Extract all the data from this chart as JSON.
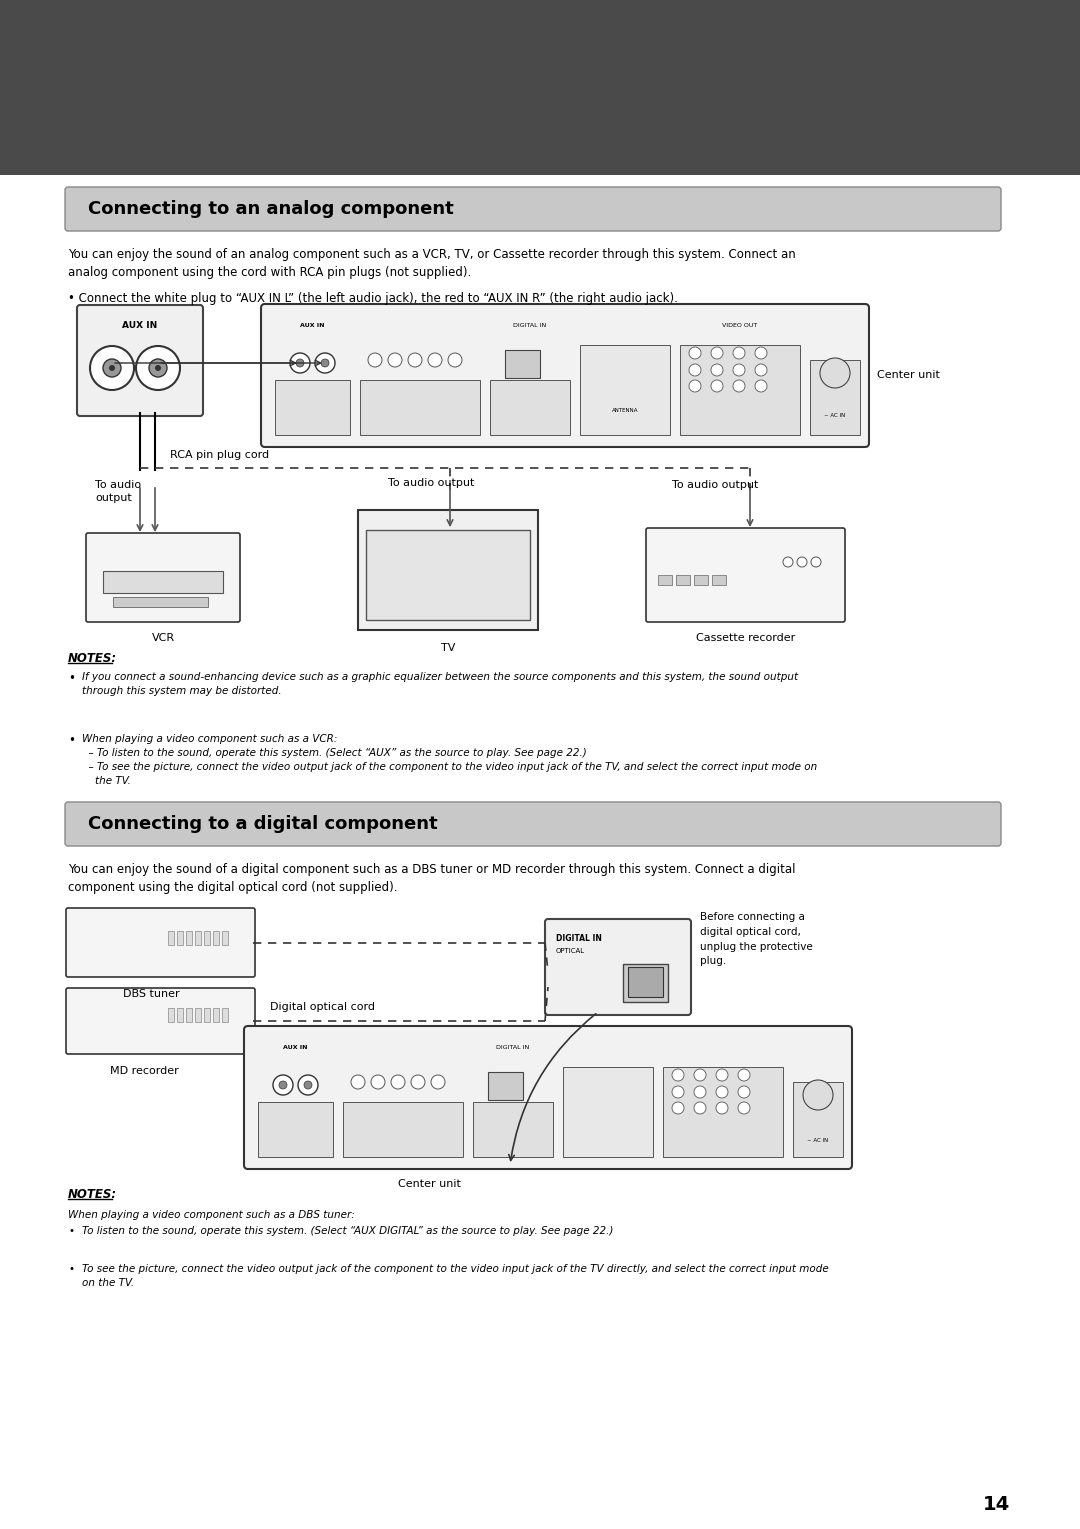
{
  "bg_color": "#ffffff",
  "header_bar_color": "#4a4a4a",
  "section1_title": "Connecting to an analog component",
  "section1_title_bg": "#d0d0d0",
  "section1_title_color": "#000000",
  "section1_body": "You can enjoy the sound of an analog component such as a VCR, TV, or Cassette recorder through this system. Connect an\nanalog component using the cord with RCA pin plugs (not supplied).",
  "section1_bullet": "• Connect the white plug to “AUX IN L” (the left audio jack), the red to “AUX IN R” (the right audio jack).",
  "section1_notes_title": "NOTES:",
  "section1_notes": [
    "If you connect a sound-enhancing device such as a graphic equalizer between the source components and this system, the sound output\nthrough this system may be distorted.",
    "When playing a video component such as a VCR:\n  – To listen to the sound, operate this system. (Select “AUX” as the source to play. See page 22.)\n  – To see the picture, connect the video output jack of the component to the video input jack of the TV, and select the correct input mode on\n    the TV."
  ],
  "section2_title": "Connecting to a digital component",
  "section2_title_bg": "#d0d0d0",
  "section2_title_color": "#000000",
  "section2_body": "You can enjoy the sound of a digital component such as a DBS tuner or MD recorder through this system. Connect a digital\ncomponent using the digital optical cord (not supplied).",
  "section2_notes_title": "NOTES:",
  "section2_notes_header": "When playing a video component such as a DBS tuner:",
  "section2_notes": [
    "To listen to the sound, operate this system. (Select “AUX DIGITAL” as the source to play. See page 22.)",
    "To see the picture, connect the video output jack of the component to the video input jack of the TV directly, and select the correct input mode\non the TV."
  ],
  "label_center_unit": "Center unit",
  "label_rca_cord": "RCA pin plug cord",
  "label_to_audio_output1": "To audio\noutput",
  "label_to_audio_output2": "To audio output",
  "label_to_audio_output3": "To audio output",
  "label_vcr": "VCR",
  "label_tv": "TV",
  "label_cassette": "Cassette recorder",
  "label_dbs": "DBS tuner",
  "label_md": "MD recorder",
  "label_digital_cord": "Digital optical cord",
  "label_center_unit2": "Center unit",
  "label_before_connect": "Before connecting a\ndigital optical cord,\nunplug the protective\nplug.",
  "page_number": "14",
  "font_size_title": 13,
  "font_size_body": 8.5,
  "font_size_label": 8,
  "font_size_notes": 7.5
}
